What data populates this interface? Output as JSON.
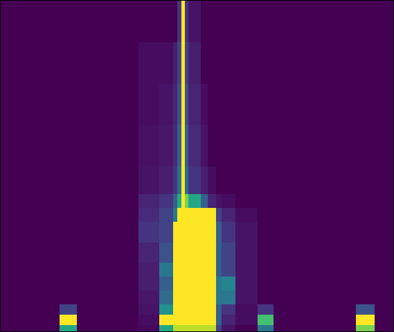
{
  "chart_data": {
    "type": "heatmap",
    "color": "viridis",
    "grid": false,
    "tick_labels": false,
    "x": [
      0,
      85,
      110,
      200,
      230,
      250,
      256,
      262,
      267,
      272,
      290,
      300,
      312,
      320,
      340,
      372,
      395,
      515,
      542,
      569
    ],
    "y": [
      0,
      60,
      120,
      180,
      240,
      280,
      300,
      320,
      350,
      380,
      400,
      420,
      440,
      455,
      470,
      479
    ],
    "xlim": [
      0,
      569
    ],
    "ylim": [
      479,
      0
    ],
    "zlim": [
      0,
      1
    ],
    "cells": [
      [
        0,
        0,
        0,
        0,
        0,
        0,
        0.15,
        1,
        0.15,
        0.05,
        0,
        0,
        0,
        0,
        0,
        0,
        0,
        0,
        0
      ],
      [
        0,
        0,
        0,
        0.03,
        0.03,
        0.08,
        0.2,
        1,
        0.2,
        0.08,
        0,
        0,
        0,
        0,
        0,
        0,
        0,
        0,
        0
      ],
      [
        0,
        0,
        0,
        0.03,
        0.05,
        0.1,
        0.25,
        1,
        0.25,
        0.1,
        0.03,
        0,
        0,
        0,
        0,
        0,
        0,
        0,
        0
      ],
      [
        0,
        0,
        0,
        0.04,
        0.06,
        0.12,
        0.3,
        1,
        0.3,
        0.12,
        0.05,
        0,
        0,
        0,
        0,
        0,
        0,
        0,
        0
      ],
      [
        0,
        0,
        0,
        0.05,
        0.08,
        0.15,
        0.35,
        1,
        0.35,
        0.15,
        0.08,
        0.03,
        0,
        0,
        0,
        0,
        0,
        0,
        0
      ],
      [
        0,
        0,
        0,
        0.1,
        0.15,
        0.3,
        0.6,
        1,
        0.8,
        0.6,
        0.3,
        0.1,
        0.05,
        0.03,
        0,
        0,
        0,
        0,
        0
      ],
      [
        0,
        0,
        0,
        0.12,
        0.2,
        0.4,
        1,
        1,
        1,
        1,
        1,
        1,
        0.2,
        0.1,
        0.03,
        0,
        0,
        0,
        0
      ],
      [
        0,
        0,
        0,
        0.15,
        0.2,
        1,
        1,
        1,
        1,
        1,
        1,
        1,
        0.3,
        0.15,
        0.05,
        0,
        0,
        0,
        0
      ],
      [
        0,
        0,
        0,
        0.1,
        0.25,
        1,
        1,
        1,
        1,
        1,
        1,
        1,
        0.3,
        0.2,
        0.05,
        0,
        0,
        0,
        0
      ],
      [
        0,
        0,
        0,
        0.08,
        0.4,
        1,
        1,
        1,
        1,
        1,
        1,
        1,
        0.3,
        0.2,
        0.05,
        0,
        0,
        0,
        0
      ],
      [
        0,
        0,
        0,
        0.08,
        0.3,
        1,
        1,
        1,
        1,
        1,
        1,
        1,
        0.4,
        0.45,
        0.05,
        0,
        0,
        0,
        0
      ],
      [
        0,
        0,
        0,
        0.06,
        0.35,
        1,
        1,
        1,
        1,
        1,
        1,
        1,
        0.4,
        0.4,
        0.05,
        0,
        0,
        0,
        0
      ],
      [
        0,
        0.2,
        0,
        0.05,
        0.5,
        1,
        1,
        1,
        1,
        1,
        1,
        1,
        0.3,
        0.15,
        0.03,
        0.15,
        0,
        0.25,
        0
      ],
      [
        0,
        1,
        0,
        0.03,
        1,
        1,
        1,
        1,
        1,
        1,
        1,
        1,
        0.3,
        0.1,
        0.03,
        0.7,
        0,
        1,
        0
      ],
      [
        0,
        0.6,
        0,
        0.02,
        0.6,
        0.9,
        0.9,
        0.9,
        0.9,
        0.9,
        0.9,
        0.9,
        0.2,
        0.05,
        0,
        0.4,
        0,
        0.8,
        0
      ]
    ]
  }
}
